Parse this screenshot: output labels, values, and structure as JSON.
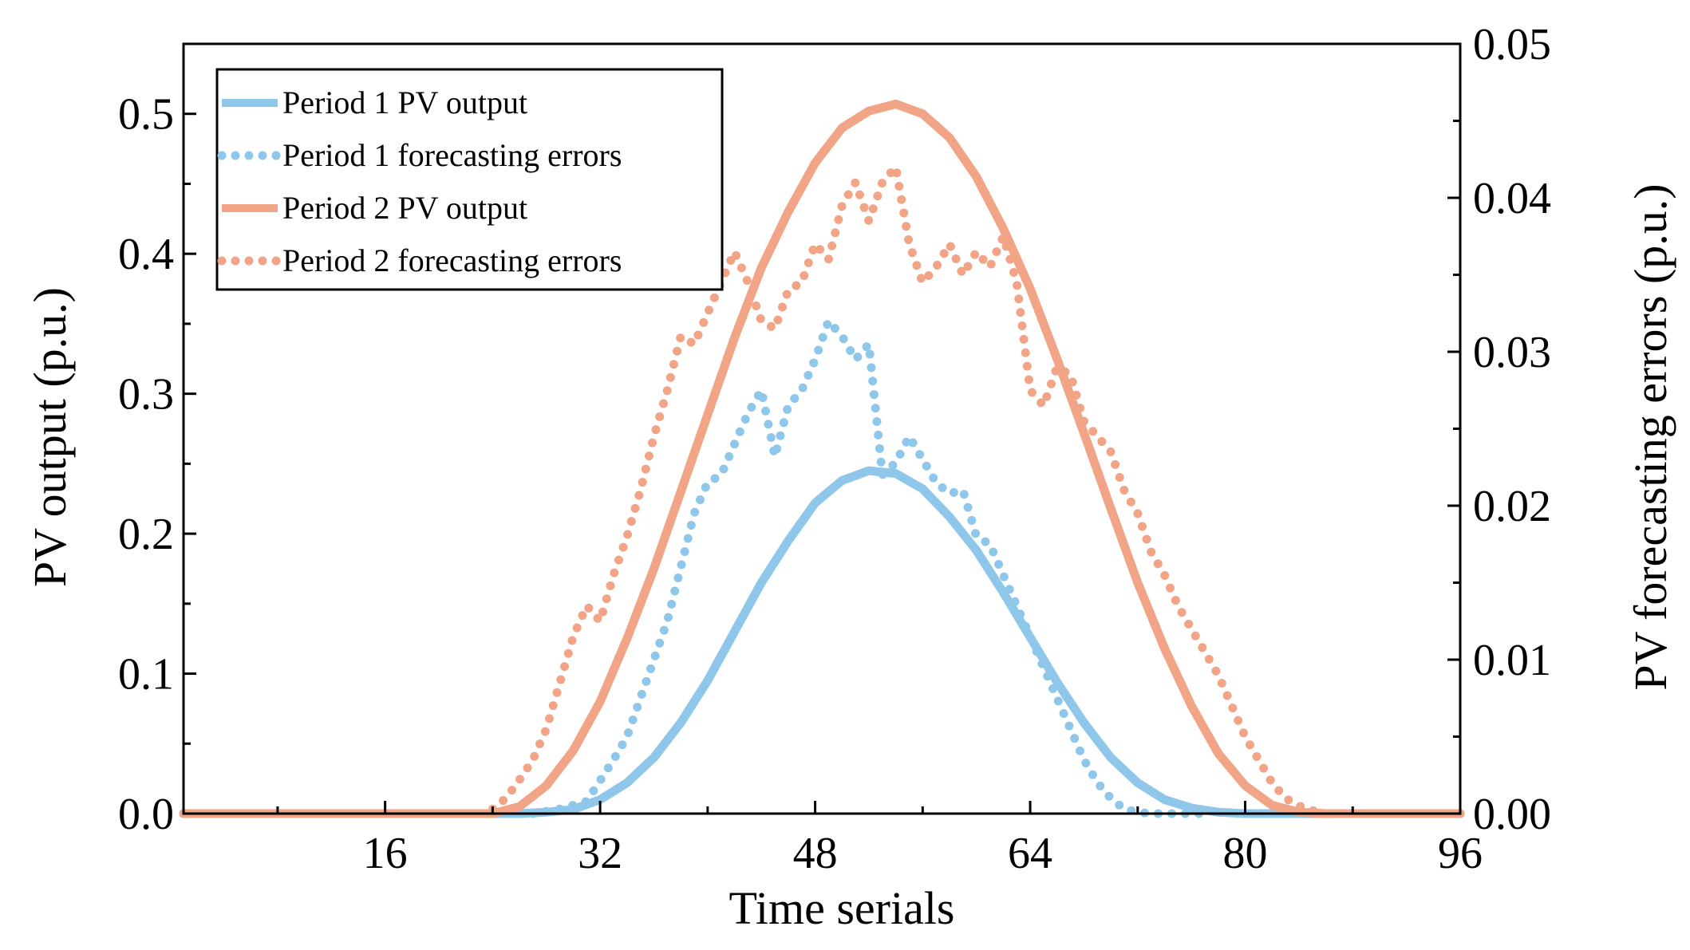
{
  "chart_data": {
    "type": "line",
    "xlabel": "Time serials",
    "ylabel_left": "PV output (p.u.)",
    "ylabel_right": "PV forecasting errors (p.u.)",
    "xlim": [
      1,
      96
    ],
    "ylim_left": [
      0,
      0.55
    ],
    "ylim_right": [
      0,
      0.05
    ],
    "x_ticks": [
      16,
      32,
      48,
      64,
      80,
      96
    ],
    "y_ticks_left": [
      0.0,
      0.1,
      0.2,
      0.3,
      0.4,
      0.5
    ],
    "y_tick_labels_left": [
      "0.0",
      "0.1",
      "0.2",
      "0.3",
      "0.4",
      "0.5"
    ],
    "y_ticks_right": [
      0.0,
      0.01,
      0.02,
      0.03,
      0.04,
      0.05
    ],
    "y_tick_labels_right": [
      "0.00",
      "0.01",
      "0.02",
      "0.03",
      "0.04",
      "0.05"
    ],
    "grid": false,
    "legend_position": "top-left",
    "colors": {
      "period1": "#8fc7ea",
      "period2": "#f2a487"
    },
    "series": [
      {
        "name": "Period 1 PV output",
        "axis": "left",
        "style": "solid",
        "color": "#8fc7ea",
        "x": [
          1,
          26,
          28,
          30,
          32,
          34,
          36,
          38,
          40,
          42,
          44,
          46,
          48,
          50,
          52,
          54,
          56,
          58,
          60,
          62,
          64,
          66,
          68,
          70,
          72,
          74,
          76,
          78,
          80,
          82,
          96
        ],
        "values": [
          0.0,
          0.0,
          0.001,
          0.003,
          0.01,
          0.022,
          0.04,
          0.065,
          0.095,
          0.13,
          0.165,
          0.195,
          0.222,
          0.238,
          0.245,
          0.243,
          0.232,
          0.212,
          0.188,
          0.158,
          0.126,
          0.094,
          0.065,
          0.04,
          0.022,
          0.01,
          0.004,
          0.001,
          0.0,
          0.0,
          0.0
        ]
      },
      {
        "name": "Period 1 forecasting errors",
        "axis": "right",
        "style": "dotted",
        "color": "#8fc7ea",
        "x": [
          27,
          29,
          31,
          33,
          34,
          35,
          36,
          37,
          38,
          39,
          40,
          41,
          42,
          43,
          44,
          45,
          46,
          47,
          48,
          49,
          50,
          51,
          52,
          53,
          54,
          55,
          56,
          57,
          58,
          59,
          60,
          61,
          62,
          63,
          64,
          65,
          66,
          67,
          68,
          69,
          70,
          71,
          72,
          73,
          74,
          75,
          76,
          77
        ],
        "values": [
          0.0,
          0.0003,
          0.0008,
          0.0035,
          0.005,
          0.0075,
          0.01,
          0.0125,
          0.016,
          0.0195,
          0.0215,
          0.022,
          0.024,
          0.026,
          0.0275,
          0.0232,
          0.0265,
          0.0275,
          0.0295,
          0.032,
          0.031,
          0.0295,
          0.0305,
          0.022,
          0.0228,
          0.0245,
          0.023,
          0.0215,
          0.0208,
          0.021,
          0.018,
          0.0175,
          0.0155,
          0.0135,
          0.0115,
          0.0095,
          0.0075,
          0.0055,
          0.0035,
          0.002,
          0.001,
          0.0003,
          0.0001,
          0.0,
          0.0,
          0.0,
          0.0,
          0.0
        ]
      },
      {
        "name": "Period 2 PV output",
        "axis": "left",
        "style": "solid",
        "color": "#f2a487",
        "x": [
          1,
          24,
          26,
          28,
          30,
          32,
          34,
          36,
          38,
          40,
          42,
          44,
          46,
          48,
          50,
          52,
          54,
          56,
          58,
          60,
          62,
          64,
          66,
          68,
          70,
          72,
          74,
          76,
          78,
          80,
          82,
          84,
          86,
          96
        ],
        "values": [
          0.0,
          0.0,
          0.005,
          0.02,
          0.045,
          0.08,
          0.125,
          0.175,
          0.23,
          0.285,
          0.34,
          0.39,
          0.43,
          0.465,
          0.49,
          0.502,
          0.507,
          0.5,
          0.483,
          0.455,
          0.418,
          0.375,
          0.325,
          0.272,
          0.218,
          0.165,
          0.118,
          0.077,
          0.043,
          0.02,
          0.006,
          0.001,
          0.0,
          0.0
        ]
      },
      {
        "name": "Period 2 forecasting errors",
        "axis": "right",
        "style": "dotted",
        "color": "#f2a487",
        "x": [
          24,
          25,
          26,
          27,
          28,
          29,
          30,
          31,
          32,
          33,
          34,
          35,
          36,
          37,
          38,
          39,
          40,
          41,
          42,
          43,
          44,
          45,
          46,
          47,
          48,
          49,
          50,
          51,
          52,
          53,
          54,
          55,
          56,
          57,
          58,
          59,
          60,
          61,
          62,
          63,
          64,
          65,
          66,
          67,
          68,
          69,
          70,
          71,
          72,
          73,
          74,
          75,
          76,
          77,
          78,
          79,
          80,
          81,
          82,
          83,
          84,
          85,
          86,
          87
        ],
        "values": [
          0.0003,
          0.001,
          0.0022,
          0.0035,
          0.0055,
          0.0085,
          0.0115,
          0.0135,
          0.0125,
          0.0155,
          0.018,
          0.021,
          0.0245,
          0.0275,
          0.031,
          0.0305,
          0.0325,
          0.0345,
          0.0365,
          0.0345,
          0.032,
          0.0315,
          0.034,
          0.0345,
          0.037,
          0.036,
          0.0395,
          0.041,
          0.0385,
          0.041,
          0.042,
          0.037,
          0.0345,
          0.0355,
          0.037,
          0.035,
          0.0365,
          0.0355,
          0.0375,
          0.0345,
          0.0275,
          0.0265,
          0.029,
          0.0285,
          0.0255,
          0.0245,
          0.0235,
          0.021,
          0.0195,
          0.017,
          0.0155,
          0.0135,
          0.012,
          0.0105,
          0.009,
          0.007,
          0.005,
          0.0035,
          0.002,
          0.001,
          0.0005,
          0.0002,
          0.0,
          0.0
        ]
      }
    ]
  }
}
